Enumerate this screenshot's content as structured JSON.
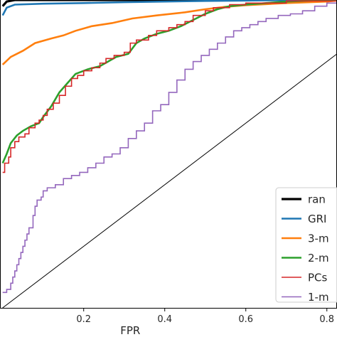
{
  "chart_data": {
    "type": "line",
    "title": "",
    "xlabel": "FPR",
    "ylabel": "",
    "xlim": [
      -0.0065,
      0.825
    ],
    "ylim": [
      0.0,
      1.0
    ],
    "xticks": [
      {
        "value": 0.2,
        "label": "0.2"
      },
      {
        "value": 0.4,
        "label": "0.4"
      },
      {
        "value": 0.6,
        "label": "0.6"
      },
      {
        "value": 0.8,
        "label": "0.8"
      }
    ],
    "legend": {
      "placement": "lower-right"
    },
    "series": [
      {
        "name": "ran",
        "color": "#000000",
        "width": 3.2,
        "step": false,
        "points": [
          [
            0.0,
            0.98
          ],
          [
            0.01,
            0.995
          ],
          [
            0.03,
            1.0
          ],
          [
            0.825,
            1.0
          ]
        ]
      },
      {
        "name": "GRI",
        "color": "#1f77b4",
        "width": 2.6,
        "step": false,
        "points": [
          [
            0.0,
            0.95
          ],
          [
            0.01,
            0.975
          ],
          [
            0.03,
            0.985
          ],
          [
            0.1,
            0.988
          ],
          [
            0.2,
            0.99
          ],
          [
            0.3,
            0.993
          ],
          [
            0.4,
            0.995
          ],
          [
            0.5,
            0.997
          ],
          [
            0.6,
            0.998
          ],
          [
            0.7,
            1.0
          ],
          [
            0.825,
            1.0
          ]
        ]
      },
      {
        "name": "3-m",
        "color": "#ff7f0e",
        "width": 2.6,
        "step": false,
        "points": [
          [
            0.0,
            0.79
          ],
          [
            0.02,
            0.815
          ],
          [
            0.05,
            0.835
          ],
          [
            0.08,
            0.86
          ],
          [
            0.12,
            0.875
          ],
          [
            0.15,
            0.885
          ],
          [
            0.18,
            0.9
          ],
          [
            0.22,
            0.915
          ],
          [
            0.27,
            0.925
          ],
          [
            0.32,
            0.94
          ],
          [
            0.38,
            0.95
          ],
          [
            0.45,
            0.96
          ],
          [
            0.5,
            0.97
          ],
          [
            0.55,
            0.978
          ],
          [
            0.6,
            0.983
          ],
          [
            0.7,
            0.99
          ],
          [
            0.8,
            0.995
          ],
          [
            0.825,
            0.998
          ]
        ]
      },
      {
        "name": "2-m",
        "color": "#2ca02c",
        "width": 2.6,
        "step": false,
        "points": [
          [
            0.0,
            0.47
          ],
          [
            0.01,
            0.5
          ],
          [
            0.02,
            0.535
          ],
          [
            0.035,
            0.56
          ],
          [
            0.05,
            0.575
          ],
          [
            0.07,
            0.59
          ],
          [
            0.09,
            0.6
          ],
          [
            0.1,
            0.62
          ],
          [
            0.12,
            0.655
          ],
          [
            0.14,
            0.7
          ],
          [
            0.16,
            0.73
          ],
          [
            0.18,
            0.76
          ],
          [
            0.21,
            0.775
          ],
          [
            0.24,
            0.785
          ],
          [
            0.26,
            0.8
          ],
          [
            0.28,
            0.815
          ],
          [
            0.31,
            0.825
          ],
          [
            0.33,
            0.86
          ],
          [
            0.35,
            0.875
          ],
          [
            0.38,
            0.89
          ],
          [
            0.41,
            0.9
          ],
          [
            0.44,
            0.915
          ],
          [
            0.47,
            0.935
          ],
          [
            0.5,
            0.955
          ],
          [
            0.53,
            0.97
          ],
          [
            0.56,
            0.98
          ],
          [
            0.6,
            0.985
          ],
          [
            0.65,
            0.99
          ],
          [
            0.7,
            0.995
          ],
          [
            0.8,
            1.0
          ],
          [
            0.825,
            1.0
          ]
        ]
      },
      {
        "name": "PCs",
        "color": "#d62728",
        "width": 1.6,
        "step": true,
        "points": [
          [
            0.0,
            0.44
          ],
          [
            0.005,
            0.47
          ],
          [
            0.015,
            0.49
          ],
          [
            0.02,
            0.52
          ],
          [
            0.03,
            0.54
          ],
          [
            0.04,
            0.555
          ],
          [
            0.055,
            0.565
          ],
          [
            0.065,
            0.585
          ],
          [
            0.08,
            0.6
          ],
          [
            0.09,
            0.61
          ],
          [
            0.1,
            0.625
          ],
          [
            0.11,
            0.645
          ],
          [
            0.125,
            0.665
          ],
          [
            0.14,
            0.69
          ],
          [
            0.155,
            0.72
          ],
          [
            0.17,
            0.745
          ],
          [
            0.185,
            0.755
          ],
          [
            0.2,
            0.77
          ],
          [
            0.22,
            0.78
          ],
          [
            0.24,
            0.795
          ],
          [
            0.255,
            0.81
          ],
          [
            0.275,
            0.82
          ],
          [
            0.3,
            0.83
          ],
          [
            0.315,
            0.86
          ],
          [
            0.33,
            0.87
          ],
          [
            0.36,
            0.885
          ],
          [
            0.38,
            0.9
          ],
          [
            0.41,
            0.91
          ],
          [
            0.43,
            0.92
          ],
          [
            0.45,
            0.93
          ],
          [
            0.47,
            0.95
          ],
          [
            0.5,
            0.965
          ],
          [
            0.52,
            0.975
          ],
          [
            0.56,
            0.985
          ],
          [
            0.6,
            0.99
          ],
          [
            0.7,
            0.997
          ],
          [
            0.825,
            1.0
          ]
        ]
      },
      {
        "name": "1-m",
        "color": "#9467bd",
        "width": 1.6,
        "step": true,
        "points": [
          [
            0.0,
            0.05
          ],
          [
            0.01,
            0.06
          ],
          [
            0.02,
            0.08
          ],
          [
            0.025,
            0.1
          ],
          [
            0.03,
            0.12
          ],
          [
            0.035,
            0.14
          ],
          [
            0.04,
            0.16
          ],
          [
            0.045,
            0.18
          ],
          [
            0.05,
            0.2
          ],
          [
            0.055,
            0.22
          ],
          [
            0.06,
            0.24
          ],
          [
            0.065,
            0.26
          ],
          [
            0.075,
            0.3
          ],
          [
            0.08,
            0.33
          ],
          [
            0.085,
            0.35
          ],
          [
            0.095,
            0.36
          ],
          [
            0.1,
            0.38
          ],
          [
            0.11,
            0.39
          ],
          [
            0.13,
            0.4
          ],
          [
            0.15,
            0.42
          ],
          [
            0.17,
            0.43
          ],
          [
            0.19,
            0.44
          ],
          [
            0.21,
            0.455
          ],
          [
            0.23,
            0.47
          ],
          [
            0.25,
            0.49
          ],
          [
            0.27,
            0.5
          ],
          [
            0.29,
            0.52
          ],
          [
            0.31,
            0.55
          ],
          [
            0.33,
            0.575
          ],
          [
            0.35,
            0.6
          ],
          [
            0.37,
            0.64
          ],
          [
            0.39,
            0.66
          ],
          [
            0.41,
            0.7
          ],
          [
            0.43,
            0.74
          ],
          [
            0.45,
            0.775
          ],
          [
            0.47,
            0.8
          ],
          [
            0.49,
            0.82
          ],
          [
            0.51,
            0.84
          ],
          [
            0.53,
            0.86
          ],
          [
            0.55,
            0.88
          ],
          [
            0.57,
            0.9
          ],
          [
            0.59,
            0.91
          ],
          [
            0.61,
            0.92
          ],
          [
            0.63,
            0.93
          ],
          [
            0.65,
            0.94
          ],
          [
            0.68,
            0.95
          ],
          [
            0.71,
            0.955
          ],
          [
            0.74,
            0.965
          ],
          [
            0.77,
            0.98
          ],
          [
            0.8,
            0.99
          ],
          [
            0.825,
            1.0
          ]
        ]
      },
      {
        "name": "",
        "color": "#000000",
        "width": 1.0,
        "step": false,
        "legend": false,
        "points": [
          [
            0.0,
            0.0
          ],
          [
            0.825,
            0.825
          ]
        ]
      }
    ]
  }
}
